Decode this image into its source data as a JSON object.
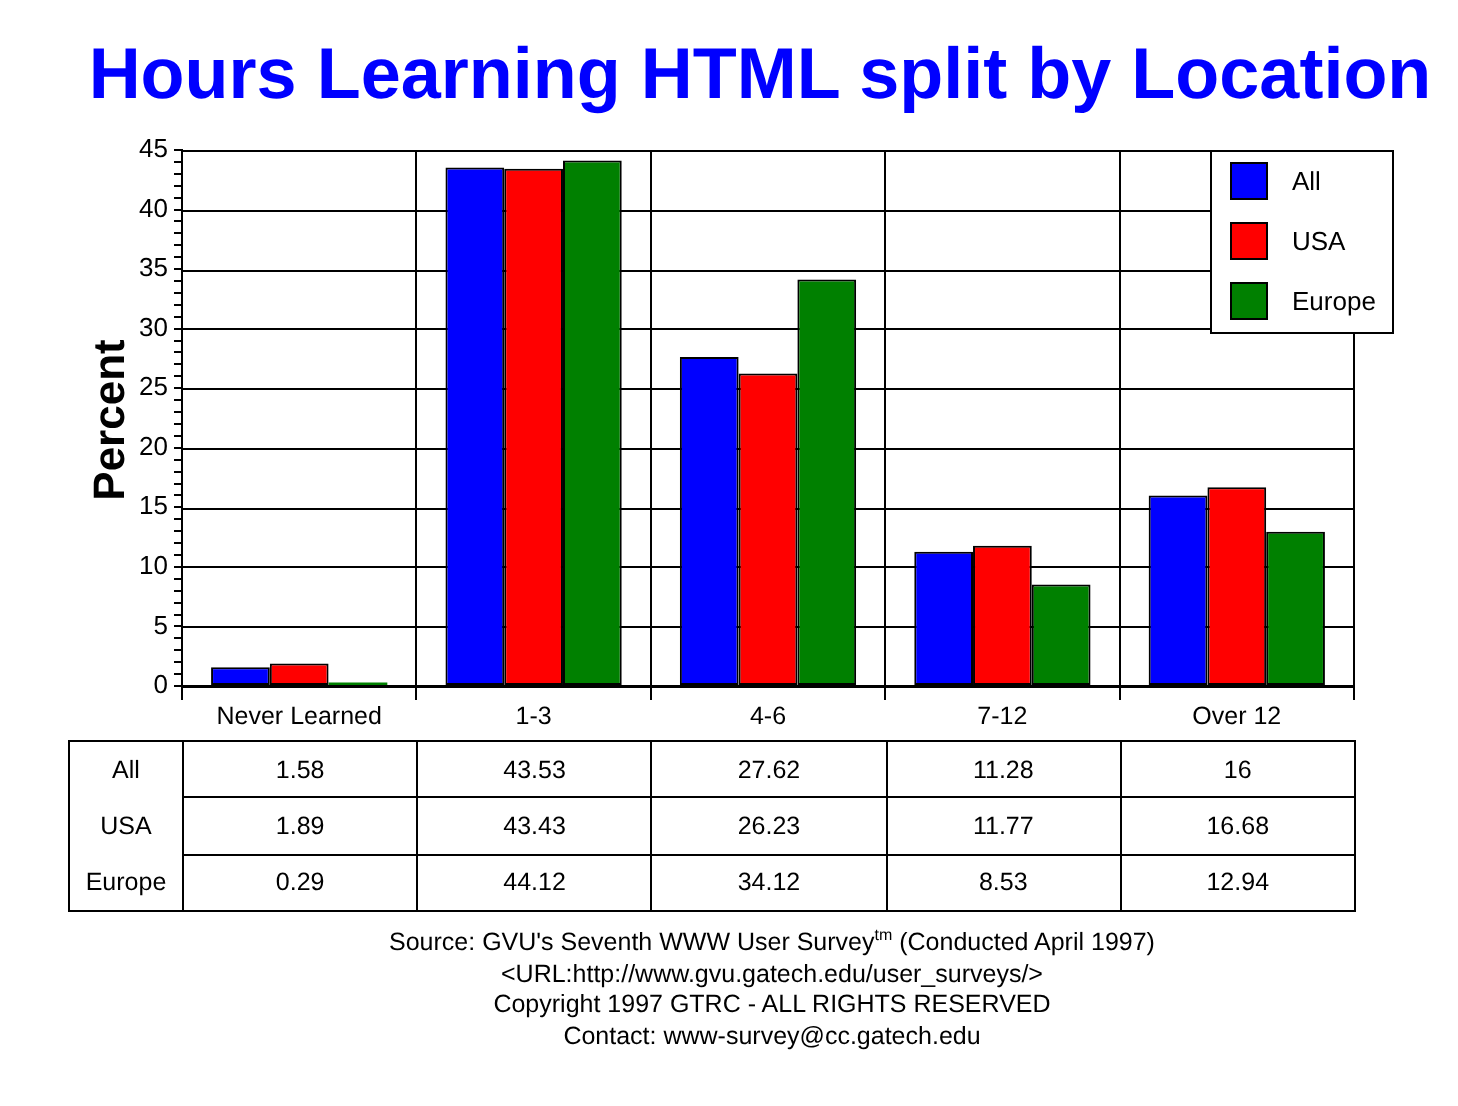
{
  "chart_data": {
    "type": "bar",
    "title": "Hours Learning HTML split by Location",
    "ylabel": "Percent",
    "categories": [
      "Never Learned",
      "1-3",
      "4-6",
      "7-12",
      "Over 12"
    ],
    "series": [
      {
        "name": "All",
        "color": "#0000ff",
        "values": [
          1.58,
          43.53,
          27.62,
          11.28,
          16
        ]
      },
      {
        "name": "USA",
        "color": "#ff0000",
        "values": [
          1.89,
          43.43,
          26.23,
          11.77,
          16.68
        ]
      },
      {
        "name": "Europe",
        "color": "#008000",
        "values": [
          0.29,
          44.12,
          34.12,
          8.53,
          12.94
        ]
      }
    ],
    "ylim": [
      0,
      45
    ],
    "yticks": [
      0,
      {
        "value": 1,
        "label": null
      },
      {
        "value": 2,
        "label": null
      },
      {
        "value": 3,
        "label": null
      },
      {
        "value": 4,
        "label": null
      },
      5,
      {
        "value": 6,
        "label": null
      },
      {
        "value": 7,
        "label": null
      },
      {
        "value": 8,
        "label": null
      },
      {
        "value": 9,
        "label": null
      },
      10,
      {
        "value": 11,
        "label": null
      },
      {
        "value": 12,
        "label": null
      },
      {
        "value": 13,
        "label": null
      },
      {
        "value": 14,
        "label": null
      },
      15,
      {
        "value": 16,
        "label": null
      },
      {
        "value": 17,
        "label": null
      },
      {
        "value": 18,
        "label": null
      },
      {
        "value": 19,
        "label": null
      },
      20,
      {
        "value": 21,
        "label": null
      },
      {
        "value": 22,
        "label": null
      },
      {
        "value": 23,
        "label": null
      },
      {
        "value": 24,
        "label": null
      },
      25,
      {
        "value": 26,
        "label": null
      },
      {
        "value": 27,
        "label": null
      },
      {
        "value": 28,
        "label": null
      },
      {
        "value": 29,
        "label": null
      },
      30,
      {
        "value": 31,
        "label": null
      },
      {
        "value": 32,
        "label": null
      },
      {
        "value": 33,
        "label": null
      },
      {
        "value": 34,
        "label": null
      },
      35,
      {
        "value": 36,
        "label": null
      },
      {
        "value": 37,
        "label": null
      },
      {
        "value": 38,
        "label": null
      },
      {
        "value": 39,
        "label": null
      },
      40,
      {
        "value": 41,
        "label": null
      },
      {
        "value": 42,
        "label": null
      },
      {
        "value": 43,
        "label": null
      },
      {
        "value": 44,
        "label": null
      },
      45
    ],
    "grid": true,
    "legend": "top right",
    "data_labels": true,
    "annotations": [
      "Source: GVU's Seventh WWW User Survey$^{tm}$ (Conducted April 1997)",
      "<URL:http://www.gvu.gatech.edu/user_surveys/>",
      "Copyright 1997 GTRC - ALL RIGHTS RESERVED",
      "Contact: www-survey@cc.gatech.edu"
    ]
  }
}
